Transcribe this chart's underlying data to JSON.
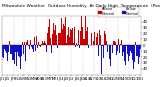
{
  "title": "Milwaukee Weather  Outdoor Humidity  At Daily High  Temperature  (Past Year)",
  "title_fontsize": 3.2,
  "background_color": "#ffffff",
  "bar_color_positive": "#cc0000",
  "bar_color_negative": "#1111cc",
  "ylim": [
    -50,
    50
  ],
  "ytick_vals": [
    -40,
    -30,
    -20,
    -10,
    0,
    10,
    20,
    30,
    40
  ],
  "ylabel_fontsize": 2.8,
  "xlabel_fontsize": 2.5,
  "legend_colors": [
    "#cc0000",
    "#1111cc"
  ],
  "legend_labels": [
    "Above\nNormal",
    "Below\nNormal"
  ],
  "n_points": 365,
  "seed": 42,
  "seasonal_amplitude": 18,
  "noise_scale": 16,
  "seasonal_shift": 0.5
}
